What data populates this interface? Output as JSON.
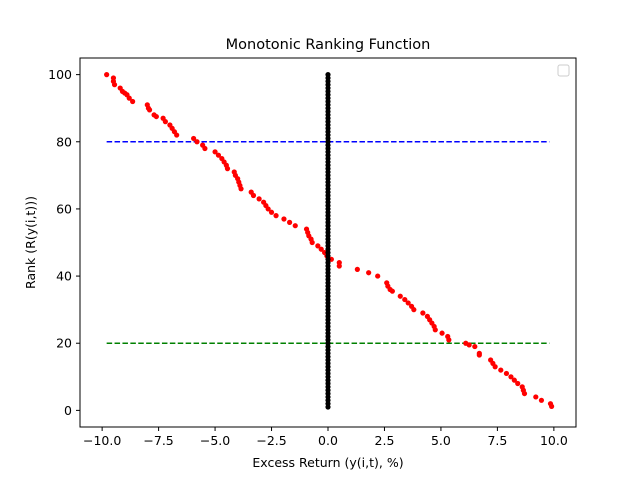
{
  "chart_data": {
    "type": "scatter",
    "title": "Monotonic Ranking Function",
    "xlabel": "Excess Return (y(i,t), %)",
    "ylabel": "Rank (R(y(i,t)))",
    "xlim": [
      -10.98,
      10.98
    ],
    "ylim": [
      -4.95,
      104.95
    ],
    "xticks": [
      -10.0,
      -7.5,
      -5.0,
      -2.5,
      0.0,
      2.5,
      5.0,
      7.5,
      10.0
    ],
    "xtick_labels": [
      "−10.0",
      "−7.5",
      "−5.0",
      "−2.5",
      "0.0",
      "2.5",
      "5.0",
      "7.5",
      "10.0"
    ],
    "yticks": [
      0,
      20,
      40,
      60,
      80,
      100
    ],
    "ytick_labels": [
      "0",
      "20",
      "40",
      "60",
      "80",
      "100"
    ],
    "grid": false,
    "legend": {
      "placement": "upper-right",
      "entries": []
    },
    "reference_lines": [
      {
        "y": 80,
        "x_range": [
          -9.8,
          9.8
        ],
        "color": "#0000ff",
        "style": "dashed"
      },
      {
        "y": 20,
        "x_range": [
          -9.8,
          9.8
        ],
        "color": "#008000",
        "style": "dashed"
      }
    ],
    "series": [
      {
        "color": "#ff0000",
        "points": [
          [
            -9.8,
            100
          ],
          [
            -9.5,
            99
          ],
          [
            -9.5,
            98
          ],
          [
            -9.45,
            97
          ],
          [
            -9.2,
            96
          ],
          [
            -9.1,
            95
          ],
          [
            -9.0,
            94.5
          ],
          [
            -8.9,
            94
          ],
          [
            -8.8,
            93
          ],
          [
            -8.65,
            92
          ],
          [
            -8.0,
            91
          ],
          [
            -7.95,
            90
          ],
          [
            -7.9,
            89.5
          ],
          [
            -7.7,
            88
          ],
          [
            -7.6,
            87.5
          ],
          [
            -7.3,
            87
          ],
          [
            -7.2,
            86
          ],
          [
            -7.0,
            85
          ],
          [
            -6.9,
            84
          ],
          [
            -6.8,
            83
          ],
          [
            -6.7,
            82
          ],
          [
            -5.95,
            81
          ],
          [
            -5.8,
            80
          ],
          [
            -5.55,
            79
          ],
          [
            -5.45,
            78
          ],
          [
            -5.0,
            77
          ],
          [
            -4.85,
            76
          ],
          [
            -4.7,
            75
          ],
          [
            -4.6,
            74
          ],
          [
            -4.5,
            73
          ],
          [
            -4.45,
            72
          ],
          [
            -4.15,
            71
          ],
          [
            -4.1,
            70
          ],
          [
            -4.0,
            69
          ],
          [
            -3.95,
            68
          ],
          [
            -3.9,
            67
          ],
          [
            -3.85,
            66
          ],
          [
            -3.4,
            65
          ],
          [
            -3.3,
            64
          ],
          [
            -3.05,
            63
          ],
          [
            -2.85,
            62
          ],
          [
            -2.75,
            61
          ],
          [
            -2.65,
            60
          ],
          [
            -2.5,
            59
          ],
          [
            -2.3,
            58
          ],
          [
            -1.95,
            57
          ],
          [
            -1.7,
            56
          ],
          [
            -1.45,
            55
          ],
          [
            -0.95,
            54
          ],
          [
            -0.9,
            53
          ],
          [
            -0.85,
            52
          ],
          [
            -0.75,
            51
          ],
          [
            -0.7,
            50
          ],
          [
            -0.45,
            49
          ],
          [
            -0.3,
            48
          ],
          [
            -0.15,
            47
          ],
          [
            -0.05,
            46
          ],
          [
            0.15,
            45
          ],
          [
            0.5,
            44
          ],
          [
            0.5,
            43
          ],
          [
            1.3,
            42
          ],
          [
            1.8,
            41
          ],
          [
            2.2,
            40
          ],
          [
            2.6,
            38
          ],
          [
            2.65,
            37
          ],
          [
            2.75,
            36
          ],
          [
            2.85,
            35.5
          ],
          [
            3.2,
            34
          ],
          [
            3.4,
            33
          ],
          [
            3.55,
            32
          ],
          [
            3.7,
            31
          ],
          [
            3.8,
            30
          ],
          [
            4.2,
            29
          ],
          [
            4.4,
            28
          ],
          [
            4.5,
            27
          ],
          [
            4.6,
            26
          ],
          [
            4.7,
            25
          ],
          [
            4.75,
            24
          ],
          [
            5.05,
            23
          ],
          [
            5.3,
            22
          ],
          [
            5.35,
            21
          ],
          [
            6.1,
            20
          ],
          [
            6.25,
            19.5
          ],
          [
            6.5,
            19
          ],
          [
            6.7,
            17
          ],
          [
            6.7,
            16.5
          ],
          [
            7.2,
            15
          ],
          [
            7.3,
            14
          ],
          [
            7.4,
            13
          ],
          [
            7.65,
            12
          ],
          [
            7.9,
            11
          ],
          [
            8.1,
            10
          ],
          [
            8.25,
            9
          ],
          [
            8.4,
            8
          ],
          [
            8.6,
            7
          ],
          [
            8.65,
            6
          ],
          [
            8.7,
            5
          ],
          [
            9.2,
            4
          ],
          [
            9.45,
            3
          ],
          [
            9.85,
            2
          ],
          [
            9.9,
            1.2
          ]
        ]
      },
      {
        "color": "#000000",
        "x_value": 0.0,
        "y_from": 1,
        "y_to": 100,
        "y_step": 1
      }
    ]
  }
}
